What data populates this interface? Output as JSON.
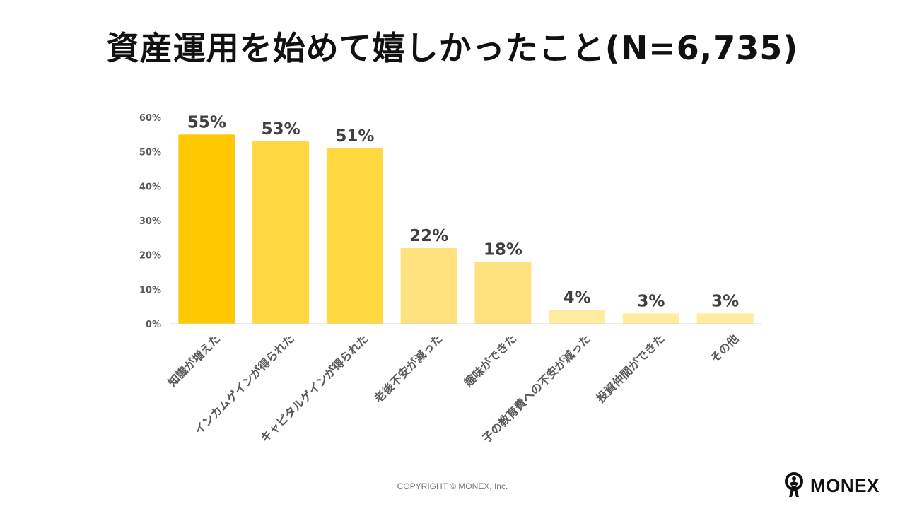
{
  "title": "資産運用を始めて嬉しかったこと(N=6,735)",
  "copyright": "COPYRIGHT © MONEX, Inc.",
  "logo": {
    "text": "MONEX",
    "icon": "monex-person-icon"
  },
  "colors": {
    "bar_strong": "#FFC800",
    "bar_medium": "#FFD840",
    "bar_light": "#FFE27E",
    "bar_faint": "#FFEC9F",
    "axis_text": "#595959",
    "value_text": "#404040"
  },
  "chart_data": {
    "type": "bar",
    "categories": [
      "知識が増えた",
      "インカムゲインが得られた",
      "キャピタルゲインが得られた",
      "老後不安が減った",
      "趣味ができた",
      "子の教育費への不安が減った",
      "投資仲間ができた",
      "その他"
    ],
    "values": [
      55,
      53,
      51,
      22,
      18,
      4,
      3,
      3
    ],
    "value_labels": [
      "55%",
      "53%",
      "51%",
      "22%",
      "18%",
      "4%",
      "3%",
      "3%"
    ],
    "ylim": [
      0,
      60
    ],
    "yticks": [
      0,
      10,
      20,
      30,
      40,
      50,
      60
    ],
    "ytick_labels": [
      "0%",
      "10%",
      "20%",
      "30%",
      "40%",
      "50%",
      "60%"
    ],
    "grid": false,
    "legend": "none"
  }
}
